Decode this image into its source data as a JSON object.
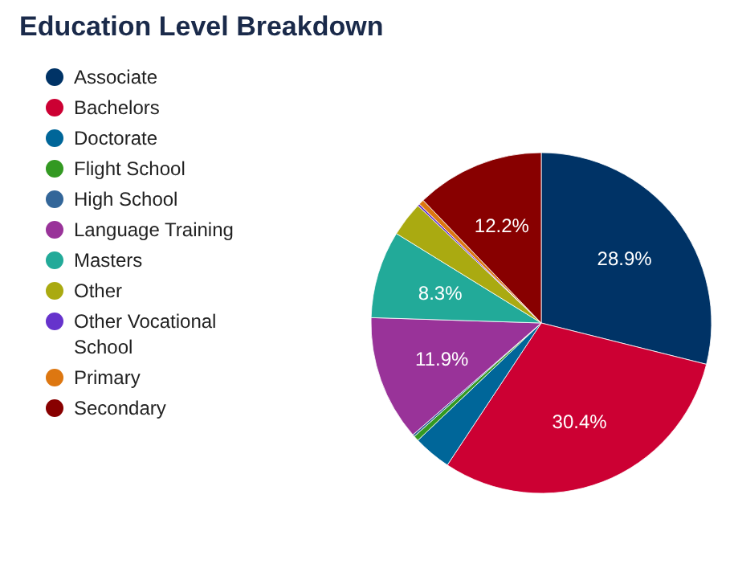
{
  "chart_data": {
    "type": "pie",
    "title": "Education Level Breakdown",
    "categories": [
      "Associate",
      "Bachelors",
      "Doctorate",
      "Flight School",
      "High School",
      "Language Training",
      "Masters",
      "Other",
      "Other Vocational School",
      "Primary",
      "Secondary"
    ],
    "values": [
      28.9,
      30.4,
      3.6,
      0.5,
      0.2,
      11.9,
      8.3,
      3.3,
      0.2,
      0.5,
      12.2
    ],
    "value_labels": [
      "28.9%",
      "30.4%",
      null,
      null,
      null,
      "11.9%",
      "8.3%",
      null,
      null,
      null,
      "12.2%"
    ],
    "colors": [
      "#003366",
      "#cc0033",
      "#006699",
      "#339922",
      "#336699",
      "#993399",
      "#22aa99",
      "#aaaa11",
      "#6633cc",
      "#dd7711",
      "#880000"
    ],
    "legend": "left"
  }
}
